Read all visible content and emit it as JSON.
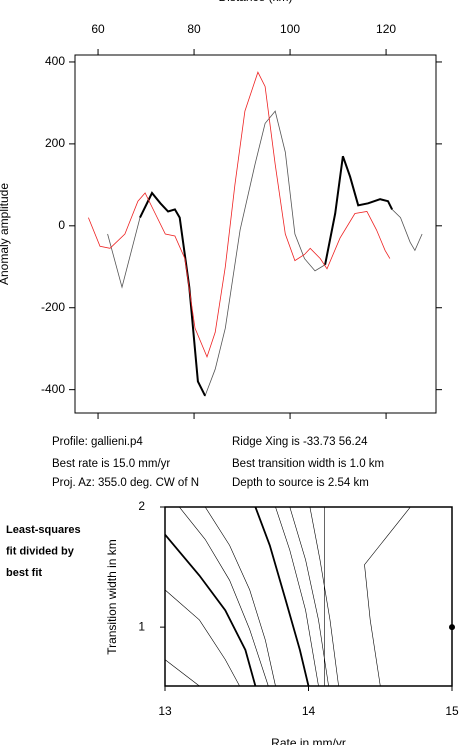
{
  "chart_data": [
    {
      "type": "line",
      "x_label": "Distance (km)",
      "y_label": "Anomaly amplitude",
      "xlim": [
        55.2,
        130.4
      ],
      "xticks": [
        60,
        80,
        100,
        120
      ],
      "xaxis_position": "top",
      "ylim": [
        -457,
        417
      ],
      "yticks": [
        -400,
        -200,
        0,
        200,
        400
      ],
      "series": [
        {
          "color": "#555555",
          "x": [
            62,
            65,
            68.75,
            71.25,
            73,
            74.6,
            76,
            77,
            79,
            80.8,
            82.3,
            84.4,
            86.5,
            89.6,
            92.7,
            94.8,
            96.9,
            99,
            101,
            103,
            105.2,
            107.3,
            109.4,
            111,
            112.5,
            114.2,
            116.25,
            118.75,
            120.4,
            121.25,
            123,
            125,
            126,
            127.5
          ],
          "values": [
            -20,
            -150,
            20,
            80,
            55,
            35,
            40,
            20,
            -150,
            -380,
            -415,
            -350,
            -250,
            -10,
            150,
            250,
            280,
            180,
            -20,
            -80,
            -110,
            -95,
            30,
            170,
            120,
            50,
            55,
            65,
            60,
            40,
            20,
            -40,
            -60,
            -20
          ]
        },
        {
          "color": "#000000",
          "x": [
            68.75,
            71.25,
            73,
            74.6,
            76,
            77,
            79,
            80.8,
            82.3,
            95,
            107.3,
            109.4,
            111,
            112.5,
            114.2,
            116.25,
            118.75,
            120.4,
            121.25
          ],
          "values": [
            20,
            80,
            55,
            35,
            40,
            20,
            -150,
            -380,
            -415,
            null,
            -95,
            30,
            170,
            120,
            50,
            55,
            65,
            60,
            40
          ]
        },
        {
          "color": "#ee2222",
          "x": [
            58,
            60.4,
            62.5,
            65.6,
            68.3,
            69.8,
            71.9,
            74,
            76,
            78.1,
            80.2,
            82.7,
            84.4,
            86.5,
            88.5,
            90.6,
            93.3,
            94.8,
            96.9,
            99,
            101,
            103,
            104.2,
            106.3,
            107.7,
            110.4,
            113.5,
            116,
            118,
            119.8,
            120.8
          ],
          "values": [
            20,
            -50,
            -55,
            -20,
            60,
            80,
            30,
            -20,
            -25,
            -80,
            -250,
            -320,
            -260,
            -100,
            100,
            280,
            375,
            340,
            150,
            -20,
            -85,
            -70,
            -55,
            -80,
            -105,
            -30,
            30,
            35,
            -10,
            -60,
            -80
          ]
        }
      ],
      "annotations": [
        "Profile: gallieni.p4",
        "Ridge Xing is -33.73 56.24",
        "Best rate is 15.0 mm/yr",
        "Best transition width is 1.0 km",
        "Proj. Az: 355.0 deg. CW of N",
        "Depth to source is   2.54 km"
      ]
    },
    {
      "type": "contour",
      "x_label": "Rate in mm/yr",
      "y_label": "Transition width in km",
      "side_note": [
        "Least-squares",
        "fit divided by",
        "best fit"
      ],
      "xlim": [
        13,
        15
      ],
      "xticks": [
        13,
        14,
        15
      ],
      "ylim": [
        0.51,
        2
      ],
      "yticks": [
        1,
        2
      ],
      "color": "#000000",
      "contours": [
        {
          "x": [
            13,
            13.24,
            13.42,
            13.52
          ],
          "y": [
            1.31,
            1.06,
            0.73,
            0.51
          ]
        },
        {
          "bold": true,
          "x": [
            13,
            13.24,
            13.42,
            13.56,
            13.63
          ],
          "y": [
            1.77,
            1.43,
            1.14,
            0.81,
            0.51
          ]
        },
        {
          "x": [
            13.1,
            13.28,
            13.45,
            13.59,
            13.72
          ],
          "y": [
            2,
            1.73,
            1.39,
            0.98,
            0.51
          ]
        },
        {
          "x": [
            13.28,
            13.45,
            13.59,
            13.7,
            13.77
          ],
          "y": [
            2,
            1.68,
            1.31,
            0.89,
            0.51
          ]
        },
        {
          "bold": true,
          "x": [
            13.63,
            13.73,
            13.84,
            13.94,
            14.0
          ],
          "y": [
            2,
            1.68,
            1.23,
            0.81,
            0.51
          ]
        },
        {
          "x": [
            13.77,
            13.87,
            13.98,
            14.07
          ],
          "y": [
            2,
            1.64,
            1.14,
            0.51
          ]
        },
        {
          "x": [
            13.87,
            13.98,
            14.07,
            14.14
          ],
          "y": [
            2,
            1.56,
            1.06,
            0.51
          ]
        },
        {
          "x": [
            14.01,
            14.08,
            14.15,
            14.21
          ],
          "y": [
            2,
            1.56,
            1.06,
            0.51
          ]
        },
        {
          "x": [
            14.11,
            14.11
          ],
          "y": [
            2,
            0.51
          ]
        },
        {
          "x": [
            14.71,
            14.53,
            14.39,
            14.43,
            14.5
          ],
          "y": [
            2,
            1.73,
            1.52,
            1.06,
            0.51
          ]
        },
        {
          "x": [
            13,
            13.24
          ],
          "y": [
            0.73,
            0.51
          ]
        }
      ],
      "points": {
        "x": [
          15
        ],
        "y": [
          1
        ]
      }
    }
  ]
}
